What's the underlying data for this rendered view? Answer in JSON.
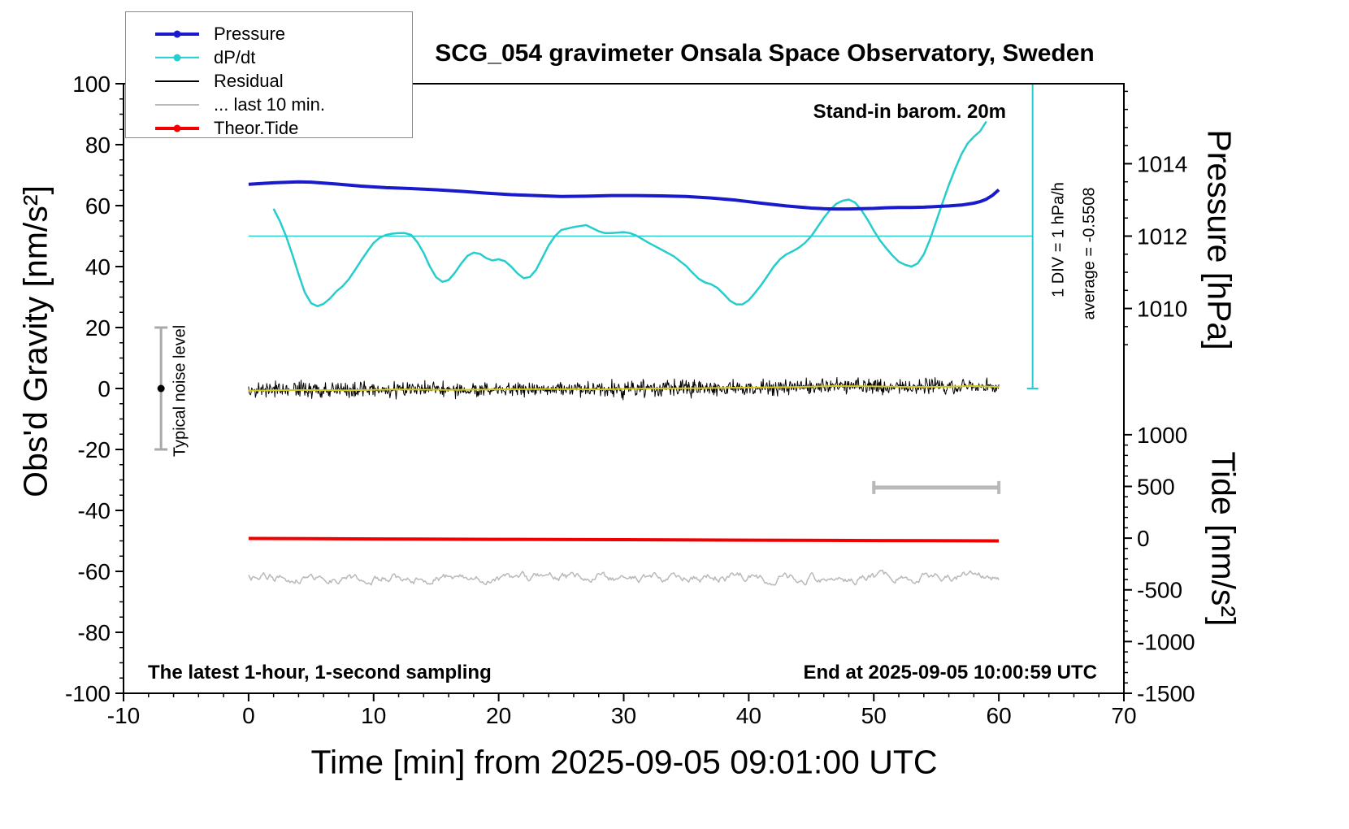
{
  "title": "SCG_054 gravimeter Onsala Space Observatory, Sweden",
  "annotations": {
    "barometer": "Stand-in barom. 20m",
    "div_scale": "1 DIV = 1 hPa/h",
    "average": "average = -0.5508",
    "noise_level": "Typical noise level",
    "sampling_info": "The latest 1-hour, 1-second sampling",
    "end_time": "End at 2025-09-05 10:00:59 UTC"
  },
  "legend": {
    "entries": [
      {
        "label": "Pressure",
        "color": "#1a1acd",
        "dot": true,
        "width": 4
      },
      {
        "label": "dP/dt",
        "color": "#26cdcd",
        "dot": true,
        "width": 2.5
      },
      {
        "label": "Residual",
        "color": "#000000",
        "dot": false,
        "width": 2
      },
      {
        "label": "... last 10 min.",
        "color": "#b9b9b9",
        "dot": false,
        "width": 2
      },
      {
        "label": "Theor.Tide",
        "color": "#f20000",
        "dot": true,
        "width": 4
      }
    ]
  },
  "chart_data": {
    "type": "line",
    "grid": false,
    "axes": {
      "x": {
        "label": "Time [min] from 2025-09-05 09:01:00 UTC",
        "min": -10,
        "max": 70,
        "major_ticks": [
          -10,
          0,
          10,
          20,
          30,
          40,
          50,
          60,
          70
        ],
        "minor_step": 2
      },
      "y_left": {
        "label": "Obs'd Gravity [nm/s²]",
        "min": -100,
        "max": 100,
        "major_ticks": [
          100,
          80,
          60,
          40,
          20,
          0,
          -20,
          -40,
          -60,
          -80,
          -100
        ],
        "minor_step": 5
      },
      "y_pressure": {
        "label": "Pressure [hPa]",
        "major_ticks": [
          1014,
          1012,
          1010
        ],
        "minor_step": 0.5,
        "minor_range": [
          1009,
          1016
        ],
        "anchor_value": 1012,
        "anchor_gravity": 50,
        "gravity_per_unit": 11.875
      },
      "y_tide": {
        "label": "Tide [nm/s²]",
        "major_ticks": [
          1000,
          500,
          0,
          -500,
          -1000,
          -1500
        ],
        "minor_step": 100,
        "minor_range": [
          -1500,
          1000
        ],
        "anchor_value": 0,
        "anchor_gravity": -49.1,
        "gravity_per_unit": 0.03393
      }
    },
    "series": [
      {
        "key": "last10",
        "name": "... last 10 min.",
        "kind": "noise-walk",
        "baseline": -62,
        "amplitude": 3.3,
        "x_start": 0,
        "x_end": 60,
        "step": 0.1,
        "color": "#b9b9b9",
        "width": 1.5,
        "value_axis": "left"
      },
      {
        "key": "theor-tide",
        "name": "Theor.Tide",
        "kind": "line",
        "color": "#f20000",
        "width": 4,
        "value_axis": "tide-right (near 0 nm/s²)",
        "points": [
          [
            0,
            -49.2
          ],
          [
            10,
            -49.35
          ],
          [
            20,
            -49.5
          ],
          [
            30,
            -49.6
          ],
          [
            40,
            -49.75
          ],
          [
            50,
            -49.9
          ],
          [
            60,
            -50.0
          ]
        ]
      },
      {
        "key": "dpdt",
        "name": "dP/dt",
        "kind": "line",
        "color": "#26cdcd",
        "width": 2.5,
        "value_axis": "left (50 = 0 hPa/h, 1 DIV = 1 hPa/h)",
        "points": [
          [
            2,
            59
          ],
          [
            2.5,
            55
          ],
          [
            3,
            50
          ],
          [
            3.5,
            44
          ],
          [
            4,
            37.5
          ],
          [
            4.5,
            31.5
          ],
          [
            5,
            28
          ],
          [
            5.5,
            27
          ],
          [
            6,
            27.8
          ],
          [
            6.5,
            29.5
          ],
          [
            7,
            31.8
          ],
          [
            7.5,
            33.5
          ],
          [
            8,
            35.8
          ],
          [
            8.5,
            38.8
          ],
          [
            9,
            42
          ],
          [
            9.5,
            45
          ],
          [
            10,
            47.8
          ],
          [
            10.5,
            49.5
          ],
          [
            11,
            50.4
          ],
          [
            11.5,
            50.8
          ],
          [
            12,
            51
          ],
          [
            12.5,
            51
          ],
          [
            13,
            50.4
          ],
          [
            13.5,
            48
          ],
          [
            14,
            44.5
          ],
          [
            14.5,
            40
          ],
          [
            15,
            36.5
          ],
          [
            15.5,
            35
          ],
          [
            16,
            35.6
          ],
          [
            16.5,
            38
          ],
          [
            17,
            41
          ],
          [
            17.5,
            43.5
          ],
          [
            18,
            44.6
          ],
          [
            18.5,
            44.2
          ],
          [
            19,
            42.8
          ],
          [
            19.5,
            42
          ],
          [
            20,
            42.4
          ],
          [
            20.5,
            41.8
          ],
          [
            21,
            40
          ],
          [
            21.5,
            37.8
          ],
          [
            22,
            36.2
          ],
          [
            22.5,
            36.6
          ],
          [
            23,
            39
          ],
          [
            23.5,
            43
          ],
          [
            24,
            47
          ],
          [
            24.5,
            50
          ],
          [
            25,
            52
          ],
          [
            26,
            53
          ],
          [
            27,
            53.6
          ],
          [
            27.5,
            52.6
          ],
          [
            28,
            51.6
          ],
          [
            28.5,
            51
          ],
          [
            29,
            51
          ],
          [
            30,
            51.3
          ],
          [
            30.5,
            51
          ],
          [
            31,
            50.2
          ],
          [
            32,
            47.8
          ],
          [
            33,
            45.6
          ],
          [
            34,
            43.4
          ],
          [
            35,
            40.2
          ],
          [
            35.5,
            38
          ],
          [
            36,
            36
          ],
          [
            36.5,
            34.8
          ],
          [
            37,
            34.2
          ],
          [
            37.5,
            33
          ],
          [
            38,
            31
          ],
          [
            38.5,
            28.8
          ],
          [
            39,
            27.6
          ],
          [
            39.5,
            27.6
          ],
          [
            40,
            29
          ],
          [
            40.5,
            31.4
          ],
          [
            41,
            34
          ],
          [
            41.5,
            37
          ],
          [
            42,
            40
          ],
          [
            42.5,
            42.4
          ],
          [
            43,
            44
          ],
          [
            43.5,
            45
          ],
          [
            44,
            46.2
          ],
          [
            44.5,
            47.8
          ],
          [
            45,
            50
          ],
          [
            45.5,
            53
          ],
          [
            46,
            56
          ],
          [
            46.5,
            58.6
          ],
          [
            47,
            60.6
          ],
          [
            47.5,
            61.6
          ],
          [
            48,
            62
          ],
          [
            48.5,
            61
          ],
          [
            49,
            58.6
          ],
          [
            49.5,
            55.4
          ],
          [
            50,
            51.8
          ],
          [
            50.5,
            48.6
          ],
          [
            51,
            46
          ],
          [
            51.5,
            43.6
          ],
          [
            52,
            41.6
          ],
          [
            52.5,
            40.6
          ],
          [
            53,
            40
          ],
          [
            53.5,
            41
          ],
          [
            54,
            44
          ],
          [
            54.5,
            49
          ],
          [
            55,
            55
          ],
          [
            55.5,
            61
          ],
          [
            56,
            66.8
          ],
          [
            56.5,
            72
          ],
          [
            57,
            76.8
          ],
          [
            57.5,
            80.4
          ],
          [
            58,
            82.6
          ],
          [
            58.5,
            84.4
          ],
          [
            59,
            87.6
          ]
        ]
      },
      {
        "key": "pressure",
        "name": "Pressure",
        "kind": "line",
        "color": "#1a1acd",
        "width": 4,
        "value_axis": "pressure-right (hPa = 1012 + (y-50)/11.875)",
        "points": [
          [
            0,
            67.0
          ],
          [
            2,
            67.5
          ],
          [
            4,
            67.8
          ],
          [
            5,
            67.7
          ],
          [
            7,
            67.1
          ],
          [
            9,
            66.4
          ],
          [
            11,
            65.9
          ],
          [
            13,
            65.6
          ],
          [
            15,
            65.2
          ],
          [
            17,
            64.7
          ],
          [
            19,
            64.1
          ],
          [
            21,
            63.6
          ],
          [
            23,
            63.3
          ],
          [
            25,
            63.0
          ],
          [
            27,
            63.1
          ],
          [
            29,
            63.3
          ],
          [
            31,
            63.3
          ],
          [
            33,
            63.2
          ],
          [
            35,
            63.0
          ],
          [
            37,
            62.5
          ],
          [
            39,
            61.8
          ],
          [
            41,
            60.8
          ],
          [
            43,
            59.9
          ],
          [
            45,
            59.2
          ],
          [
            46,
            59.0
          ],
          [
            47,
            58.9
          ],
          [
            48,
            58.9
          ],
          [
            49,
            59.0
          ],
          [
            50,
            59.1
          ],
          [
            51,
            59.3
          ],
          [
            52,
            59.4
          ],
          [
            53,
            59.4
          ],
          [
            54,
            59.5
          ],
          [
            55,
            59.7
          ],
          [
            56,
            59.9
          ],
          [
            57,
            60.2
          ],
          [
            58,
            60.8
          ],
          [
            58.5,
            61.3
          ],
          [
            59,
            62.1
          ],
          [
            59.5,
            63.4
          ],
          [
            60,
            65.2
          ]
        ]
      },
      {
        "key": "residual",
        "name": "Residual",
        "kind": "noise-around-mean",
        "mean_key": "residual-mean",
        "sigma": 2.6,
        "x_start": 0,
        "x_end": 60,
        "step": 0.05,
        "color": "#000000",
        "width": 1,
        "value_axis": "left"
      },
      {
        "key": "residual-mean",
        "name": "Residual 10-min mean",
        "kind": "line",
        "color": "#d4c81c",
        "width": 2,
        "value_axis": "left",
        "points": [
          [
            0,
            -0.7
          ],
          [
            4,
            -0.5
          ],
          [
            8,
            -0.6
          ],
          [
            12,
            -0.3
          ],
          [
            16,
            -0.45
          ],
          [
            20,
            -0.3
          ],
          [
            24,
            -0.15
          ],
          [
            28,
            -0.3
          ],
          [
            32,
            0.0
          ],
          [
            36,
            0.1
          ],
          [
            40,
            0.3
          ],
          [
            44,
            0.5
          ],
          [
            47,
            0.8
          ],
          [
            50,
            0.7
          ],
          [
            53,
            0.5
          ],
          [
            56,
            0.6
          ],
          [
            58,
            0.8
          ],
          [
            60,
            0.5
          ]
        ]
      }
    ],
    "reference_line": {
      "y": 50,
      "x_start": 0,
      "x_end": 62.7,
      "color": "#26cdcd"
    },
    "div_indicator": {
      "x": 62.7,
      "y_start": 0,
      "y_end": 100,
      "color": "#26cdcd"
    },
    "noise_errorbar": {
      "x": -7,
      "y_min": -20,
      "y_max": 20,
      "y_center": 0,
      "color": "#a9a9a9"
    },
    "scale_bar": {
      "x_start": 50,
      "x_end": 60,
      "y": -32.5,
      "color": "#b9b9b9"
    }
  }
}
